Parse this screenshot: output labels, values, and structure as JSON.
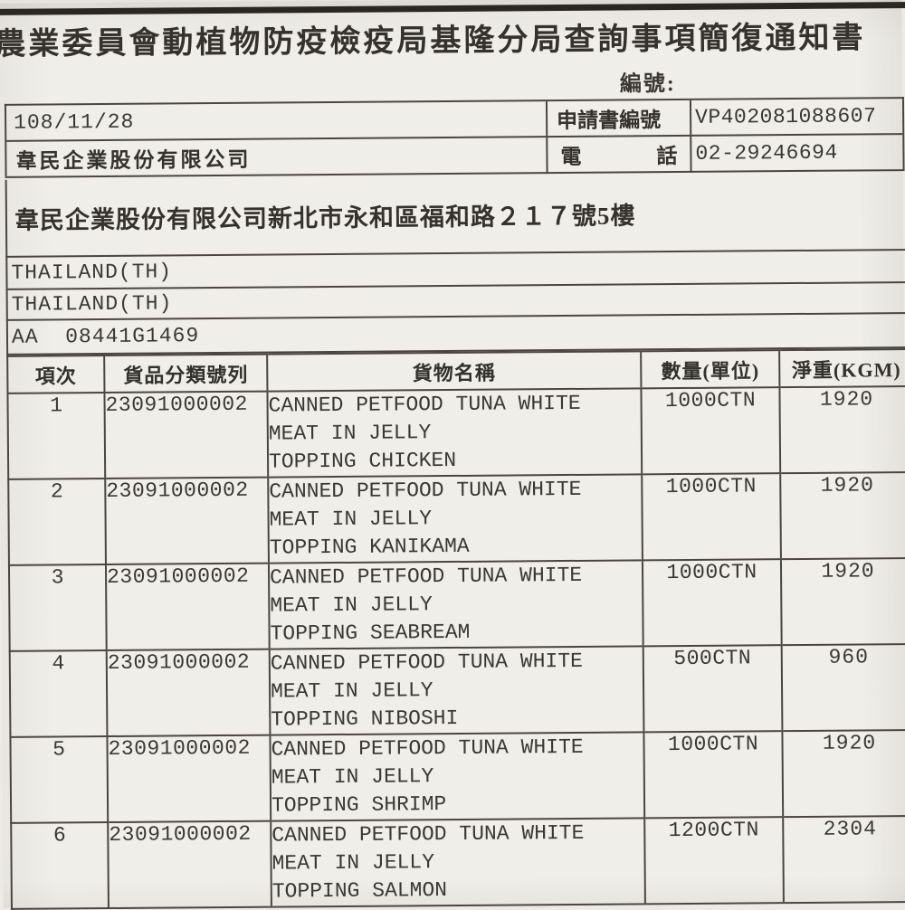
{
  "document": {
    "title": "農業委員會動植物防疫檢疫局基隆分局查詢事項簡復通知書",
    "serial_label": "編號:",
    "info": {
      "date": "108/11/28",
      "application_no_label": "申請書編號",
      "application_no": "VP402081088607",
      "applicant": "韋民企業股份有限公司",
      "phone_label_left": "電",
      "phone_label_right": "話",
      "phone": "02-29246694",
      "address": "韋民企業股份有限公司新北市永和區福和路２１７號5樓",
      "origin_country": "THAILAND(TH)",
      "export_country": "THAILAND(TH)",
      "permit_code": "AA  08441G1469"
    },
    "table": {
      "headers": [
        "項次",
        "貨品分類號列",
        "貨物名稱",
        "數量(單位)",
        "淨重(KGM)"
      ],
      "rows": [
        {
          "no": "1",
          "code": "23091000002",
          "desc": [
            "CANNED PETFOOD TUNA WHITE",
            "MEAT IN JELLY",
            "TOPPING CHICKEN"
          ],
          "qty": "1000CTN",
          "weight": "1920"
        },
        {
          "no": "2",
          "code": "23091000002",
          "desc": [
            "CANNED PETFOOD TUNA WHITE",
            "MEAT IN JELLY",
            "TOPPING KANIKAMA"
          ],
          "qty": "1000CTN",
          "weight": "1920"
        },
        {
          "no": "3",
          "code": "23091000002",
          "desc": [
            "CANNED PETFOOD TUNA WHITE",
            "MEAT IN JELLY",
            "TOPPING SEABREAM"
          ],
          "qty": "1000CTN",
          "weight": "1920"
        },
        {
          "no": "4",
          "code": "23091000002",
          "desc": [
            "CANNED PETFOOD TUNA WHITE",
            "MEAT IN JELLY",
            "TOPPING NIBOSHI"
          ],
          "qty": "500CTN",
          "weight": "960"
        },
        {
          "no": "5",
          "code": "23091000002",
          "desc": [
            "CANNED PETFOOD TUNA WHITE",
            "MEAT IN JELLY",
            "TOPPING SHRIMP"
          ],
          "qty": "1000CTN",
          "weight": "1920"
        },
        {
          "no": "6",
          "code": "23091000002",
          "desc": [
            "CANNED PETFOOD TUNA WHITE",
            "MEAT IN JELLY",
            "TOPPING SALMON"
          ],
          "qty": "1200CTN",
          "weight": "2304"
        }
      ]
    },
    "colors": {
      "paper": "#f0eee9",
      "ink": "#34322b",
      "line": "#4a463f",
      "scan_edge": "#28261f"
    }
  }
}
